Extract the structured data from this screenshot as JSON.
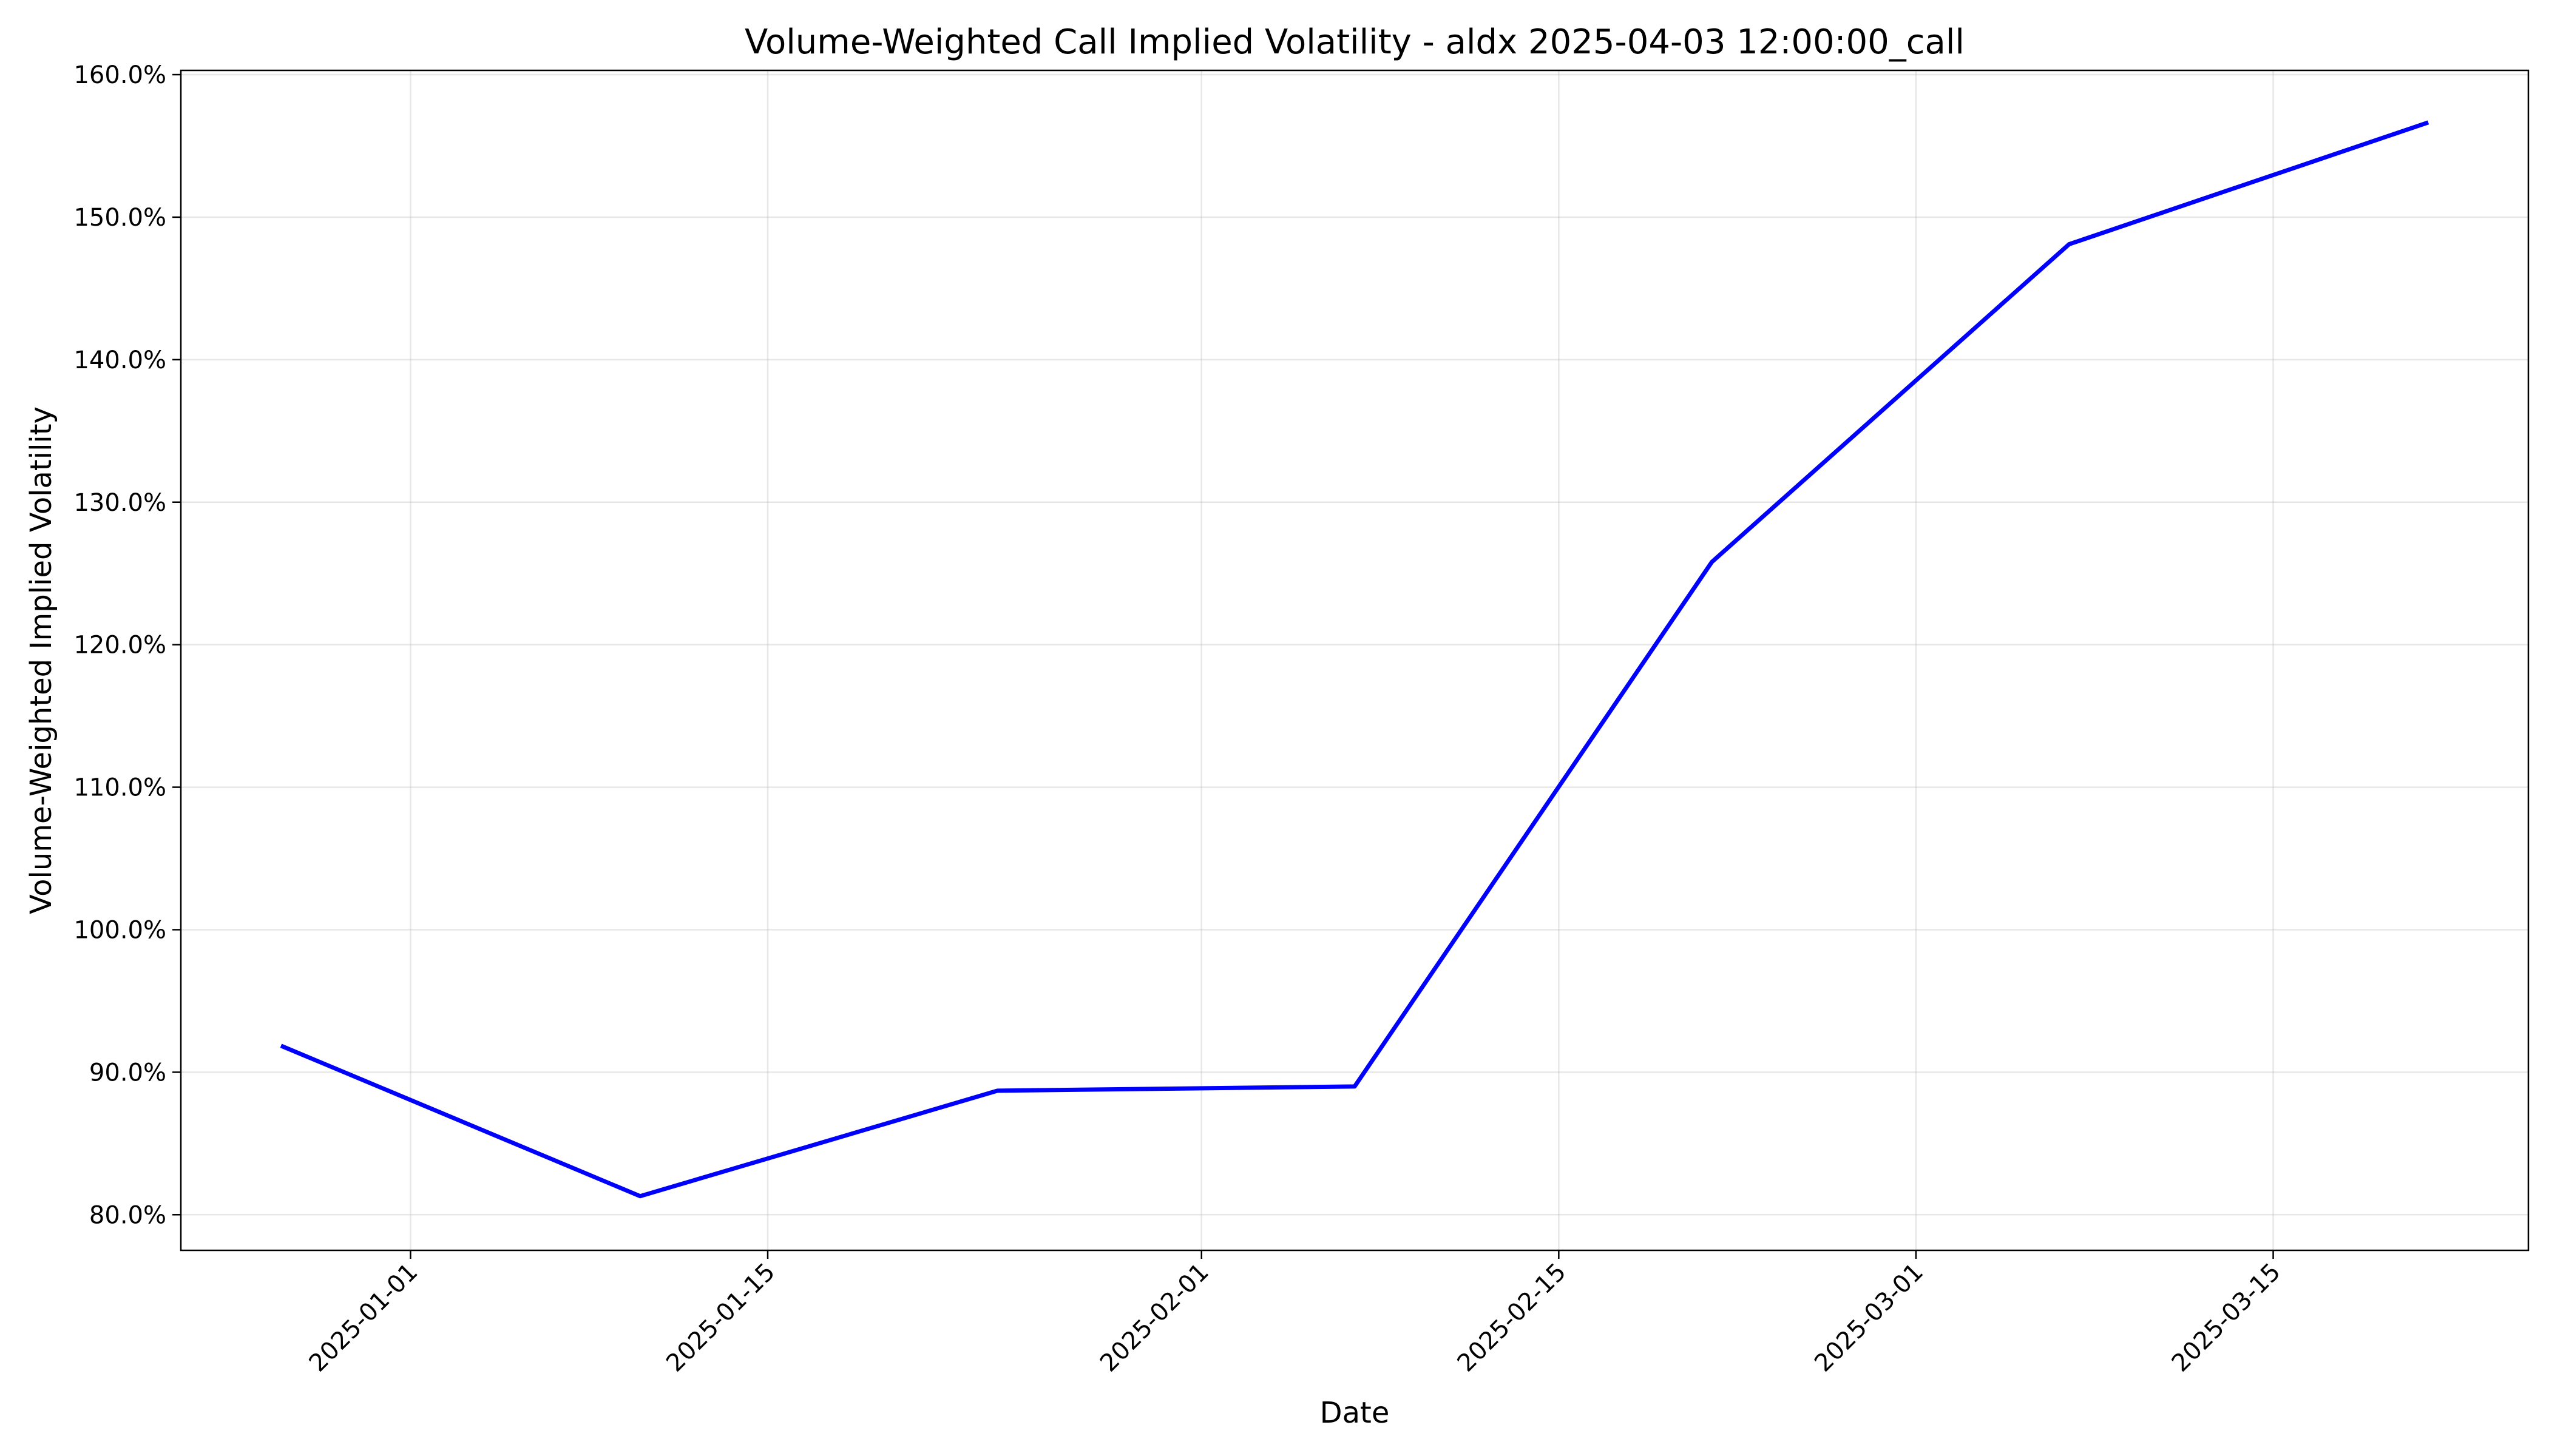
{
  "chart_data": {
    "type": "line",
    "title": "Volume-Weighted Call Implied Volatility - aldx 2025-04-03 12:00:00_call",
    "xlabel": "Date",
    "ylabel": "Volume-Weighted Implied Volatility",
    "x_tick_labels": [
      "2025-01-01",
      "2025-01-15",
      "2025-02-01",
      "2025-02-15",
      "2025-03-01",
      "2025-03-15"
    ],
    "y_tick_labels": [
      "80.0%",
      "90.0%",
      "100.0%",
      "110.0%",
      "120.0%",
      "130.0%",
      "140.0%",
      "150.0%",
      "160.0%"
    ],
    "y_ticks": [
      80,
      90,
      100,
      110,
      120,
      130,
      140,
      150,
      160
    ],
    "xlim": [
      "2024-12-23",
      "2025-03-25"
    ],
    "ylim": [
      77.5,
      160.3
    ],
    "grid": true,
    "series": [
      {
        "color": "#0000ff",
        "x": [
          "2024-12-27",
          "2025-01-10",
          "2025-01-24",
          "2025-02-07",
          "2025-02-21",
          "2025-03-07",
          "2025-03-21"
        ],
        "values": [
          91.8,
          81.3,
          88.7,
          89.0,
          125.8,
          148.1,
          156.6
        ]
      }
    ]
  }
}
